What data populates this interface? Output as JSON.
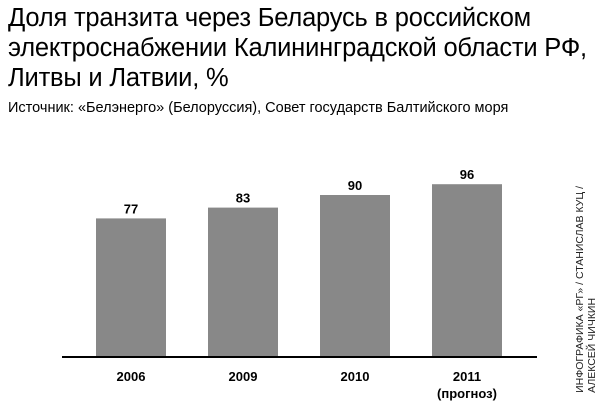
{
  "header": {
    "title": "Доля транзита через Беларусь в российском электроснабжении Калининградской области РФ, Литвы и Латвии, %",
    "source": "Источник: «Белэнерго» (Белоруссия), Совет государств Балтийского моря"
  },
  "credit": {
    "line1": "ИНФОГРАФИКА «РГ» / СТАНИСЛАВ КУЦ /",
    "line2": "АЛЕКСЕЙ ЧИЧКИН"
  },
  "chart_data": {
    "type": "bar",
    "categories": [
      "2006",
      "2009",
      "2010",
      "2011"
    ],
    "category_sublabels": [
      "",
      "",
      "",
      "(прогноз)"
    ],
    "values": [
      77,
      83,
      90,
      96
    ],
    "data_labels": [
      "77",
      "83",
      "90",
      "96"
    ],
    "title": "",
    "xlabel": "",
    "ylabel": "",
    "ylim": [
      0,
      100
    ],
    "grid": false,
    "bar_color": "#888888"
  }
}
